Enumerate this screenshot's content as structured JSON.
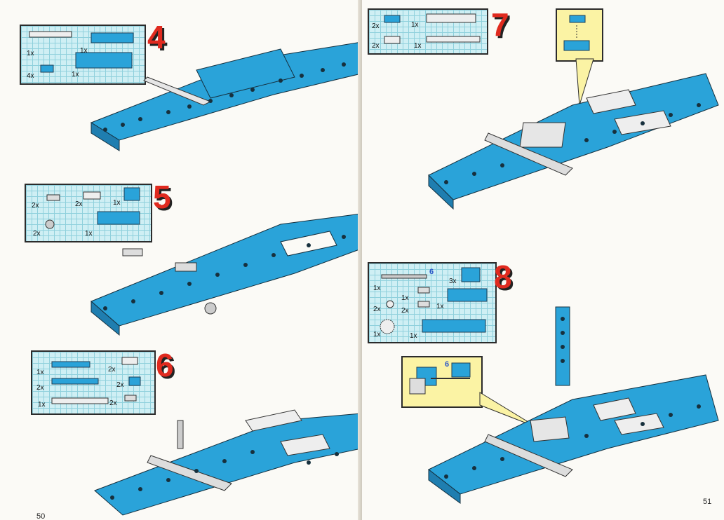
{
  "left_page": {
    "page_number": "50",
    "steps": [
      {
        "number": "4",
        "parts": [
          "1x",
          "1x",
          "4x",
          "1x"
        ]
      },
      {
        "number": "5",
        "parts": [
          "2x",
          "2x",
          "1x",
          "2x",
          "1x"
        ]
      },
      {
        "number": "6",
        "parts": [
          "1x",
          "2x",
          "2x",
          "2x",
          "1x",
          "2x"
        ]
      }
    ]
  },
  "right_page": {
    "page_number": "51",
    "steps": [
      {
        "number": "7",
        "parts": [
          "2x",
          "1x",
          "2x",
          "1x"
        ]
      },
      {
        "number": "8",
        "parts": [
          "1x",
          "3x",
          "1x",
          "2x",
          "2x",
          "1x",
          "1x",
          "1x"
        ],
        "callout_label": "6",
        "part_label": "6"
      }
    ]
  },
  "colors": {
    "brick_blue": "#2aa3d9",
    "step_red": "#e02a1f",
    "grid_cyan": "#cfeff4",
    "callout_yellow": "#fbf3a4",
    "plate_white": "#eeeeee"
  },
  "icons": [
    "technic-beam-icon",
    "plate-icon",
    "axle-icon",
    "connector-peg-icon",
    "gear-icon"
  ]
}
